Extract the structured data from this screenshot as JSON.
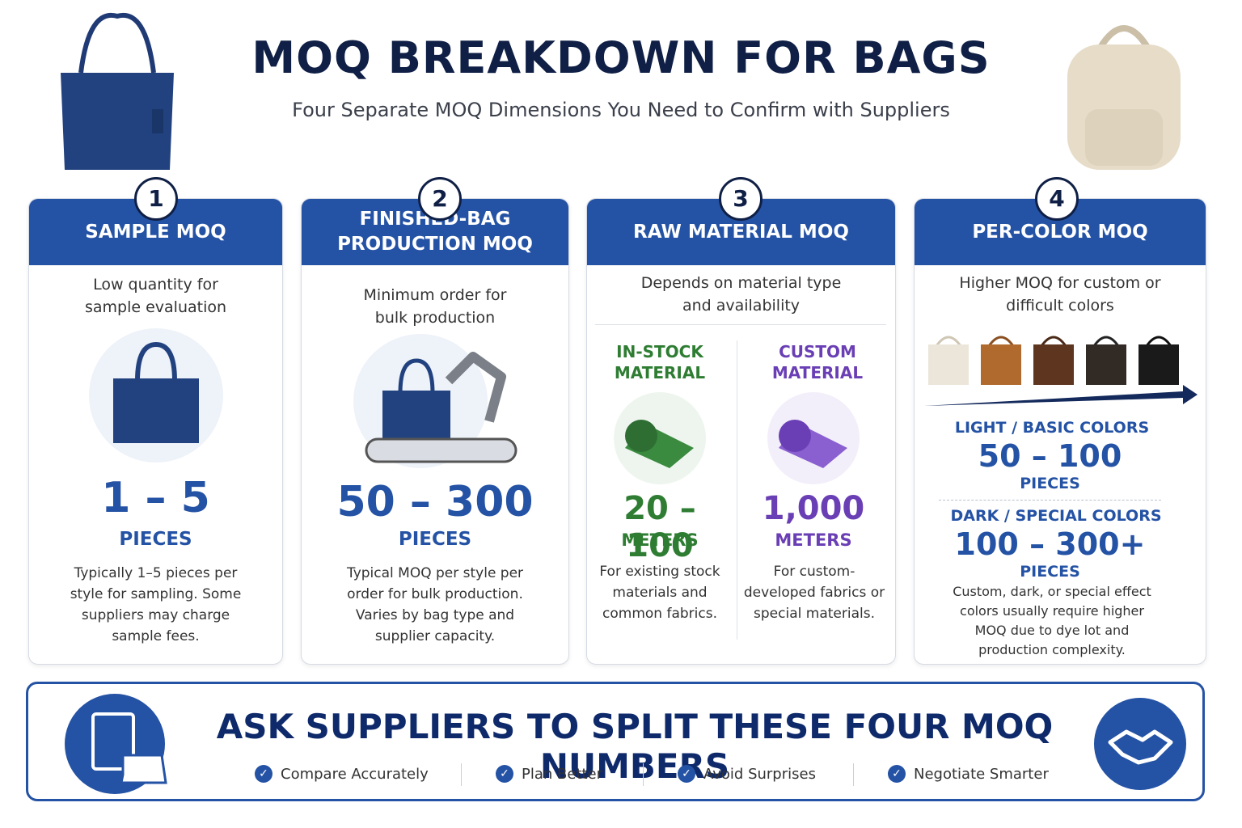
{
  "header": {
    "title": "MOQ BREAKDOWN FOR BAGS",
    "subtitle": "Four Separate MOQ Dimensions You Need to Confirm with Suppliers"
  },
  "cards": [
    {
      "number": "1",
      "title": "SAMPLE MOQ",
      "description": "Low quantity for sample evaluation",
      "quantity": "1 – 5",
      "unit": "PIECES",
      "note": "Typically 1–5 pieces per style for sampling. Some suppliers may charge sample fees."
    },
    {
      "number": "2",
      "title": "FINISHED-BAG PRODUCTION MOQ",
      "description": "Minimum order for bulk production",
      "quantity": "50 – 300",
      "unit": "PIECES",
      "note": "Typical MOQ per style per order for bulk production. Varies by bag type and supplier capacity."
    },
    {
      "number": "3",
      "title": "RAW MATERIAL MOQ",
      "description": "Depends on material type and availability",
      "options": [
        {
          "label": "IN-STOCK MATERIAL",
          "quantity": "20 – 100",
          "unit": "METERS",
          "note": "For existing stock materials and common fabrics."
        },
        {
          "label": "CUSTOM MATERIAL",
          "quantity": "1,000",
          "unit": "METERS",
          "note": "For custom-developed fabrics or special materials."
        }
      ]
    },
    {
      "number": "4",
      "title": "PER-COLOR MOQ",
      "description": "Higher MOQ for custom or difficult colors",
      "tiers": [
        {
          "label": "LIGHT / BASIC COLORS",
          "quantity": "50 – 100",
          "unit": "PIECES"
        },
        {
          "label": "DARK / SPECIAL COLORS",
          "quantity": "100 – 300+",
          "unit": "PIECES"
        }
      ],
      "note": "Custom, dark, or special effect colors usually require higher MOQ due to dye lot and production complexity."
    }
  ],
  "footer": {
    "title": "ASK SUPPLIERS TO SPLIT THESE FOUR MOQ NUMBERS",
    "benefits": [
      "Compare Accurately",
      "Plan Better",
      "Avoid Surprises",
      "Negotiate Smarter"
    ]
  }
}
